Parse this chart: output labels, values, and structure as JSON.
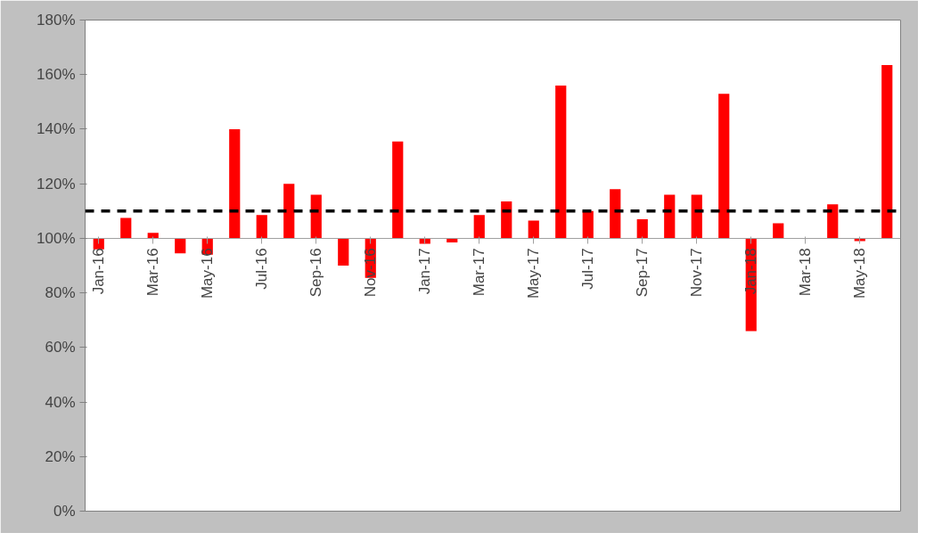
{
  "chart_data": {
    "type": "bar",
    "categories": [
      "Jan-16",
      null,
      "Mar-16",
      null,
      "May-16",
      null,
      "Jul-16",
      null,
      "Sep-16",
      null,
      "Nov-16",
      null,
      "Jan-17",
      null,
      "Mar-17",
      null,
      "May-17",
      null,
      "Jul-17",
      null,
      "Sep-17",
      null,
      "Nov-17",
      null,
      "Jan-18",
      null,
      "Mar-18",
      null,
      "May-18",
      null
    ],
    "base": [
      100,
      100,
      100,
      100,
      100,
      100,
      100,
      100,
      100,
      100,
      100,
      100,
      100,
      100,
      100,
      100,
      100,
      100,
      100,
      100,
      100,
      100,
      100,
      100,
      100,
      100,
      null,
      100,
      100,
      100
    ],
    "values": [
      -4,
      7.5,
      2,
      -5.5,
      -6,
      40,
      8.5,
      20,
      16,
      -10,
      -14.5,
      35.5,
      -2,
      -1.5,
      8.5,
      13.5,
      6.5,
      56,
      10,
      18,
      7,
      16,
      16,
      53,
      -34,
      5.5,
      null,
      12.5,
      -1,
      63.5
    ],
    "color": "#ff0000",
    "ylim": [
      0,
      180
    ],
    "yticks": [
      {
        "value": 0,
        "label": "0%"
      },
      {
        "value": 20,
        "label": "20%"
      },
      {
        "value": 40,
        "label": "40%"
      },
      {
        "value": 60,
        "label": "60%"
      },
      {
        "value": 80,
        "label": "80%"
      },
      {
        "value": 100,
        "label": "100%"
      },
      {
        "value": 120,
        "label": "120%"
      },
      {
        "value": 140,
        "label": "140%"
      },
      {
        "value": 160,
        "label": "160%"
      },
      {
        "value": 180,
        "label": "180%"
      }
    ],
    "ref_lines": [
      {
        "axis": "y",
        "value": 110,
        "label": null,
        "color": "#000000",
        "line_style": "dashed"
      }
    ],
    "grid": false
  }
}
